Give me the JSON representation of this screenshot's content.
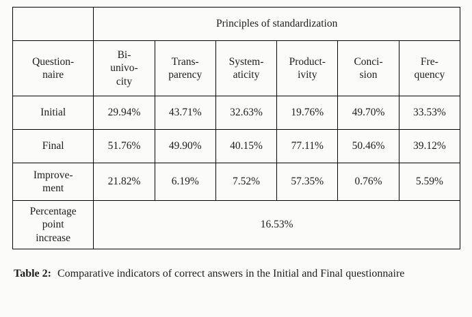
{
  "table": {
    "header_top": "Principles of standardization",
    "row_header_label": "Question-\nnaire",
    "columns": [
      "Bi-\nunivo-\ncity",
      "Trans-\nparency",
      "System-\naticity",
      "Product-\nivity",
      "Conci-\nsion",
      "Fre-\nquency"
    ],
    "rows": [
      {
        "label": "Initial",
        "values": [
          "29.94%",
          "43.71%",
          "32.63%",
          "19.76%",
          "49.70%",
          "33.53%"
        ]
      },
      {
        "label": "Final",
        "values": [
          "51.76%",
          "49.90%",
          "40.15%",
          "77.11%",
          "50.46%",
          "39.12%"
        ]
      },
      {
        "label": "Improve-\nment",
        "values": [
          "21.82%",
          "6.19%",
          "7.52%",
          "57.35%",
          "0.76%",
          "5.59%"
        ]
      }
    ],
    "footer": {
      "label": "Percentage\npoint\nincrease",
      "value": "16.53%"
    }
  },
  "caption": {
    "label": "Table 2:",
    "text": "Comparative indicators of correct answers in the Initial and Final questionnaire"
  }
}
